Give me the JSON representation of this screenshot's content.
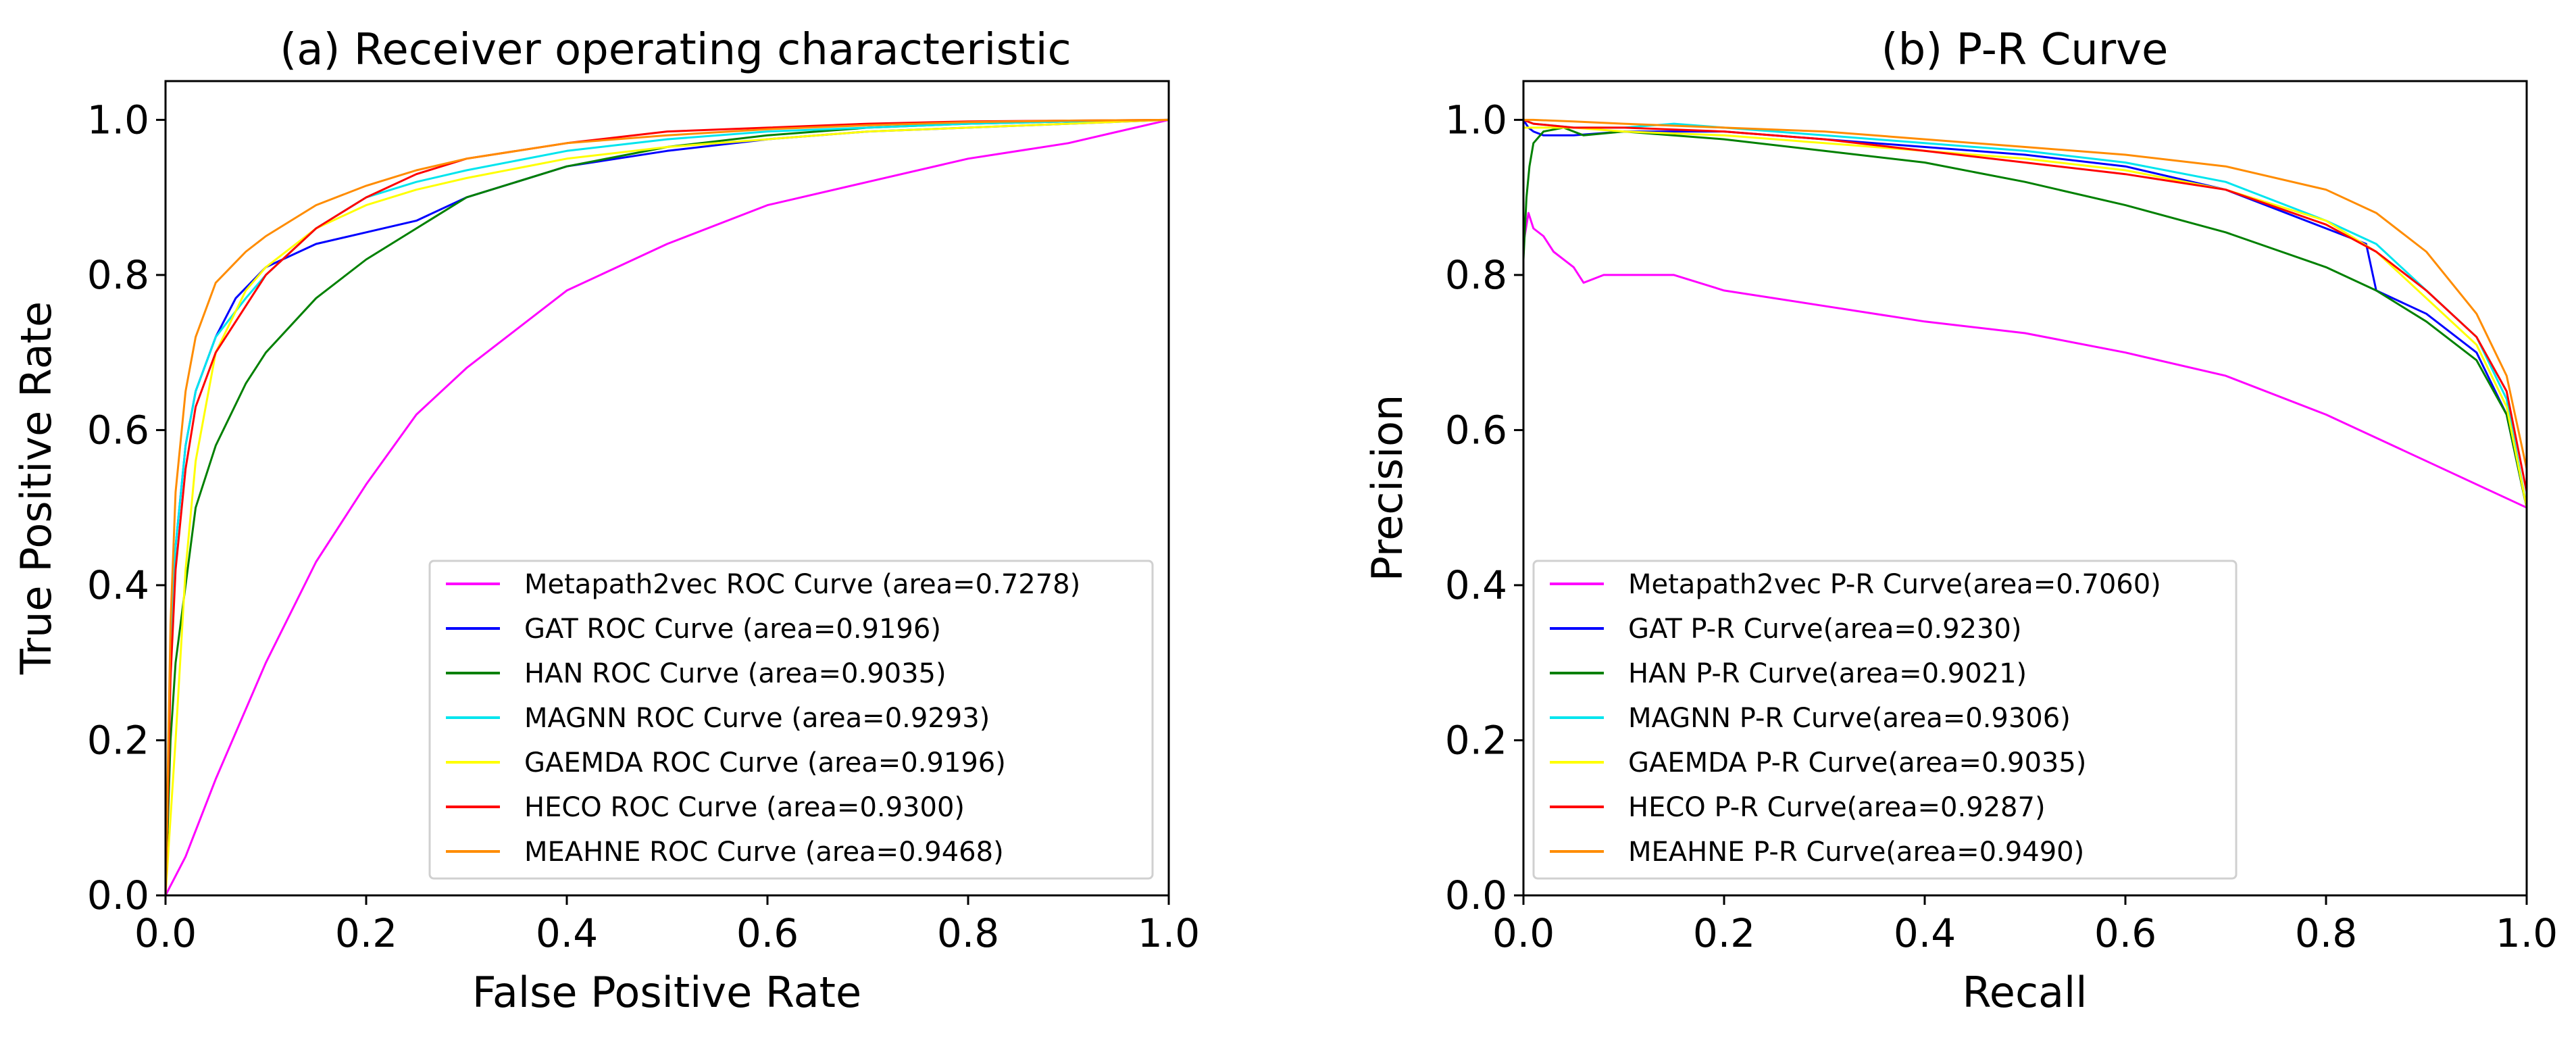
{
  "chart_data": [
    {
      "type": "line",
      "title": "(a) Receiver operating characteristic",
      "xlabel": "False Positive Rate",
      "ylabel": "True Positive Rate",
      "xlim": [
        0.0,
        1.0
      ],
      "ylim": [
        0.0,
        1.05
      ],
      "xticks": [
        "0.0",
        "0.2",
        "0.4",
        "0.6",
        "0.8",
        "1.0"
      ],
      "yticks": [
        "0.0",
        "0.2",
        "0.4",
        "0.6",
        "0.8",
        "1.0"
      ],
      "legend_position": "lower-right",
      "series": [
        {
          "name": "Metapath2vec ROC Curve (area=0.7278)",
          "color": "#ff00ff",
          "x": [
            0,
            0.02,
            0.05,
            0.1,
            0.15,
            0.2,
            0.25,
            0.3,
            0.4,
            0.5,
            0.6,
            0.7,
            0.8,
            0.9,
            1.0
          ],
          "y": [
            0,
            0.05,
            0.15,
            0.3,
            0.43,
            0.53,
            0.62,
            0.68,
            0.78,
            0.84,
            0.89,
            0.92,
            0.95,
            0.97,
            1.0
          ]
        },
        {
          "name": "GAT ROC Curve (area=0.9196)",
          "color": "#0000ff",
          "x": [
            0,
            0.005,
            0.01,
            0.02,
            0.03,
            0.05,
            0.07,
            0.1,
            0.15,
            0.2,
            0.25,
            0.3,
            0.4,
            0.5,
            0.6,
            0.7,
            0.8,
            0.9,
            1.0
          ],
          "y": [
            0,
            0.3,
            0.45,
            0.58,
            0.65,
            0.72,
            0.77,
            0.81,
            0.84,
            0.855,
            0.87,
            0.9,
            0.94,
            0.96,
            0.975,
            0.985,
            0.99,
            0.995,
            1.0
          ]
        },
        {
          "name": "HAN ROC Curve (area=0.9035)",
          "color": "#008000",
          "x": [
            0,
            0.005,
            0.01,
            0.02,
            0.03,
            0.05,
            0.08,
            0.1,
            0.15,
            0.2,
            0.25,
            0.3,
            0.4,
            0.5,
            0.6,
            0.7,
            0.8,
            0.9,
            1.0
          ],
          "y": [
            0,
            0.2,
            0.3,
            0.4,
            0.5,
            0.58,
            0.66,
            0.7,
            0.77,
            0.82,
            0.86,
            0.9,
            0.94,
            0.965,
            0.98,
            0.99,
            0.995,
            0.998,
            1.0
          ]
        },
        {
          "name": "MAGNN ROC Curve (area=0.9293)",
          "color": "#00e5ee",
          "x": [
            0,
            0.005,
            0.01,
            0.02,
            0.03,
            0.05,
            0.08,
            0.1,
            0.15,
            0.2,
            0.25,
            0.3,
            0.4,
            0.5,
            0.6,
            0.7,
            0.8,
            0.9,
            1.0
          ],
          "y": [
            0,
            0.3,
            0.45,
            0.58,
            0.65,
            0.72,
            0.77,
            0.8,
            0.86,
            0.9,
            0.92,
            0.935,
            0.96,
            0.975,
            0.985,
            0.99,
            0.995,
            0.998,
            1.0
          ]
        },
        {
          "name": "GAEMDA ROC Curve (area=0.9196)",
          "color": "#ffff00",
          "x": [
            0,
            0.005,
            0.01,
            0.02,
            0.03,
            0.05,
            0.08,
            0.1,
            0.15,
            0.2,
            0.25,
            0.3,
            0.4,
            0.5,
            0.6,
            0.7,
            0.8,
            0.9,
            1.0
          ],
          "y": [
            0,
            0.1,
            0.2,
            0.42,
            0.56,
            0.7,
            0.78,
            0.81,
            0.86,
            0.89,
            0.91,
            0.925,
            0.95,
            0.965,
            0.975,
            0.985,
            0.99,
            0.995,
            1.0
          ]
        },
        {
          "name": "HECO ROC Curve (area=0.9300)",
          "color": "#ff0000",
          "x": [
            0,
            0.005,
            0.01,
            0.02,
            0.03,
            0.05,
            0.08,
            0.1,
            0.15,
            0.2,
            0.25,
            0.3,
            0.4,
            0.5,
            0.6,
            0.7,
            0.8,
            0.9,
            1.0
          ],
          "y": [
            0,
            0.28,
            0.42,
            0.55,
            0.63,
            0.7,
            0.76,
            0.8,
            0.86,
            0.9,
            0.93,
            0.95,
            0.97,
            0.985,
            0.99,
            0.995,
            0.998,
            0.999,
            1.0
          ]
        },
        {
          "name": "MEAHNE ROC Curve (area=0.9468)",
          "color": "#ff8c00",
          "x": [
            0,
            0.005,
            0.01,
            0.02,
            0.03,
            0.05,
            0.08,
            0.1,
            0.15,
            0.2,
            0.25,
            0.3,
            0.4,
            0.5,
            0.6,
            0.7,
            0.8,
            0.9,
            1.0
          ],
          "y": [
            0,
            0.35,
            0.52,
            0.65,
            0.72,
            0.79,
            0.83,
            0.85,
            0.89,
            0.915,
            0.935,
            0.95,
            0.97,
            0.98,
            0.988,
            0.993,
            0.997,
            0.999,
            1.0
          ]
        }
      ]
    },
    {
      "type": "line",
      "title": "(b) P-R Curve",
      "xlabel": "Recall",
      "ylabel": "Precision",
      "xlim": [
        0.0,
        1.0
      ],
      "ylim": [
        0.0,
        1.05
      ],
      "xticks": [
        "0.0",
        "0.2",
        "0.4",
        "0.6",
        "0.8",
        "1.0"
      ],
      "yticks": [
        "0.0",
        "0.2",
        "0.4",
        "0.6",
        "0.8",
        "1.0"
      ],
      "legend_position": "lower-left",
      "series": [
        {
          "name": "Metapath2vec P-R Curve(area=0.7060)",
          "color": "#ff00ff",
          "x": [
            0,
            0.005,
            0.01,
            0.02,
            0.03,
            0.05,
            0.06,
            0.08,
            0.1,
            0.15,
            0.2,
            0.3,
            0.4,
            0.5,
            0.6,
            0.7,
            0.8,
            0.9,
            1.0
          ],
          "y": [
            0.84,
            0.88,
            0.86,
            0.85,
            0.83,
            0.81,
            0.79,
            0.8,
            0.8,
            0.8,
            0.78,
            0.76,
            0.74,
            0.725,
            0.7,
            0.67,
            0.62,
            0.56,
            0.5
          ]
        },
        {
          "name": "GAT P-R Curve(area=0.9230)",
          "color": "#0000ff",
          "x": [
            0,
            0.005,
            0.01,
            0.02,
            0.05,
            0.1,
            0.2,
            0.3,
            0.4,
            0.5,
            0.6,
            0.7,
            0.8,
            0.84,
            0.85,
            0.9,
            0.95,
            0.98,
            1.0
          ],
          "y": [
            1.0,
            0.99,
            0.985,
            0.98,
            0.98,
            0.985,
            0.985,
            0.975,
            0.965,
            0.955,
            0.94,
            0.91,
            0.86,
            0.84,
            0.78,
            0.75,
            0.7,
            0.62,
            0.5
          ]
        },
        {
          "name": "HAN P-R Curve(area=0.9021)",
          "color": "#008000",
          "x": [
            0,
            0.003,
            0.006,
            0.01,
            0.02,
            0.04,
            0.06,
            0.1,
            0.2,
            0.3,
            0.4,
            0.5,
            0.6,
            0.7,
            0.8,
            0.85,
            0.9,
            0.95,
            0.98,
            1.0
          ],
          "y": [
            0.82,
            0.9,
            0.94,
            0.97,
            0.985,
            0.99,
            0.98,
            0.985,
            0.975,
            0.96,
            0.945,
            0.92,
            0.89,
            0.855,
            0.81,
            0.78,
            0.74,
            0.69,
            0.62,
            0.5
          ]
        },
        {
          "name": "MAGNN P-R Curve(area=0.9306)",
          "color": "#00e5ee",
          "x": [
            0,
            0.01,
            0.05,
            0.1,
            0.15,
            0.2,
            0.3,
            0.4,
            0.5,
            0.6,
            0.7,
            0.8,
            0.85,
            0.9,
            0.95,
            0.98,
            1.0
          ],
          "y": [
            1.0,
            0.995,
            0.99,
            0.99,
            0.995,
            0.99,
            0.98,
            0.97,
            0.96,
            0.945,
            0.92,
            0.87,
            0.84,
            0.78,
            0.72,
            0.64,
            0.5
          ]
        },
        {
          "name": "GAEMDA P-R Curve(area=0.9035)",
          "color": "#ffff00",
          "x": [
            0,
            0.01,
            0.05,
            0.1,
            0.2,
            0.3,
            0.4,
            0.5,
            0.6,
            0.7,
            0.8,
            0.85,
            0.9,
            0.95,
            0.98,
            1.0
          ],
          "y": [
            0.99,
            0.99,
            0.99,
            0.985,
            0.98,
            0.97,
            0.96,
            0.95,
            0.935,
            0.91,
            0.87,
            0.83,
            0.77,
            0.71,
            0.63,
            0.5
          ]
        },
        {
          "name": "HECO P-R Curve(area=0.9287)",
          "color": "#ff0000",
          "x": [
            0,
            0.01,
            0.05,
            0.1,
            0.2,
            0.3,
            0.4,
            0.5,
            0.6,
            0.7,
            0.8,
            0.85,
            0.9,
            0.95,
            0.98,
            1.0
          ],
          "y": [
            1.0,
            0.995,
            0.99,
            0.99,
            0.985,
            0.975,
            0.96,
            0.945,
            0.93,
            0.91,
            0.865,
            0.83,
            0.78,
            0.72,
            0.65,
            0.52
          ]
        },
        {
          "name": "MEAHNE P-R Curve(area=0.9490)",
          "color": "#ff8c00",
          "x": [
            0,
            0.01,
            0.05,
            0.1,
            0.2,
            0.3,
            0.4,
            0.5,
            0.6,
            0.7,
            0.8,
            0.85,
            0.9,
            0.95,
            0.98,
            1.0
          ],
          "y": [
            1.0,
            1.0,
            0.998,
            0.995,
            0.99,
            0.985,
            0.975,
            0.965,
            0.955,
            0.94,
            0.91,
            0.88,
            0.83,
            0.75,
            0.67,
            0.55
          ]
        }
      ]
    }
  ]
}
